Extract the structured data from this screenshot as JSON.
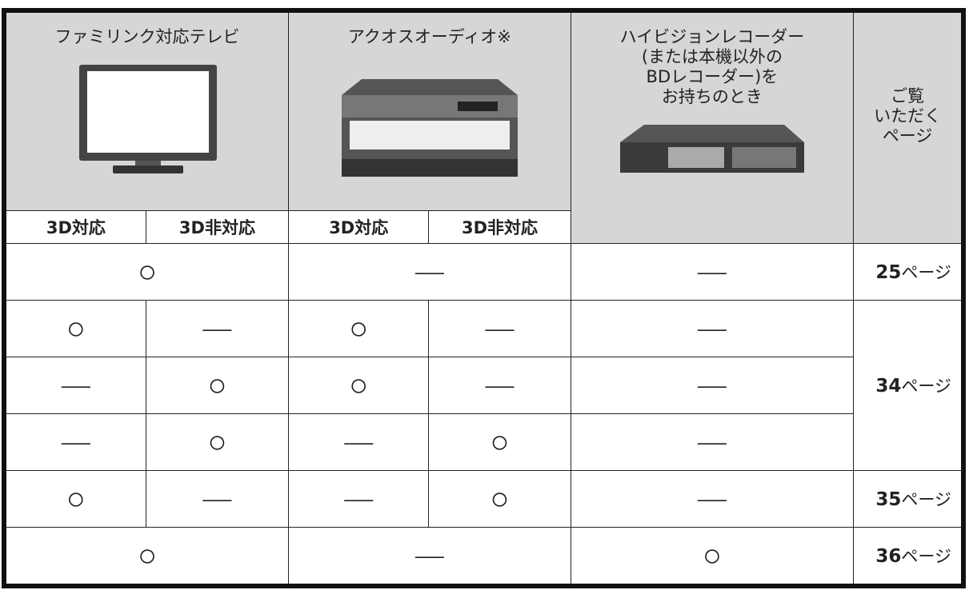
{
  "header": {
    "tv": "ファミリンク対応テレビ",
    "audio": "アクオスオーディオ※",
    "recorder_lines": [
      "ハイビジョンレコーダー",
      "(または本機以外の",
      "BDレコーダー)を",
      "お持ちのとき"
    ],
    "page_lines": [
      "ご覧",
      "いただく",
      "ページ"
    ],
    "subheaders": [
      "3D対応",
      "3D非対応",
      "3D対応",
      "3D非対応"
    ]
  },
  "rows": [
    {
      "tv": "○",
      "audio": "—",
      "recorder": "—",
      "page": {
        "number": "25",
        "unit": "ページ"
      }
    },
    {
      "tv_3d": "○",
      "tv_non3d": "—",
      "audio_3d": "○",
      "audio_non3d": "—",
      "recorder": "—",
      "page": {
        "number": "34",
        "unit": "ページ"
      }
    },
    {
      "tv_3d": "—",
      "tv_non3d": "○",
      "audio_3d": "○",
      "audio_non3d": "—",
      "recorder": "—"
    },
    {
      "tv_3d": "—",
      "tv_non3d": "○",
      "audio_3d": "—",
      "audio_non3d": "○",
      "recorder": "—"
    },
    {
      "tv_3d": "○",
      "tv_non3d": "—",
      "audio_3d": "—",
      "audio_non3d": "○",
      "recorder": "—",
      "page": {
        "number": "35",
        "unit": "ページ"
      }
    },
    {
      "tv": "○",
      "audio": "—",
      "recorder": "○",
      "page": {
        "number": "36",
        "unit": "ページ"
      }
    }
  ]
}
